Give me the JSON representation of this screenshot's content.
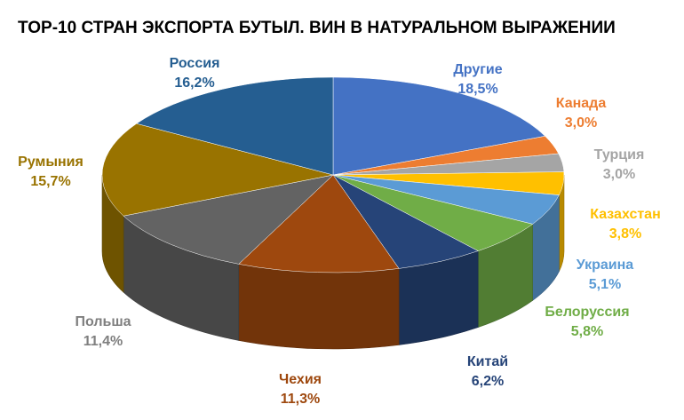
{
  "chart_data": {
    "type": "pie",
    "title": "TOP-10 СТРАН ЭКСПОРТА БУТЫЛ. ВИН В НАТУРАЛЬНОМ ВЫРАЖЕНИИ",
    "slices": [
      {
        "name": "Другие",
        "value": 18.5,
        "label": "18,5%",
        "color": "#4472C4",
        "label_color": "#4472C4"
      },
      {
        "name": "Канада",
        "value": 3.0,
        "label": "3,0%",
        "color": "#ED7D31",
        "label_color": "#ED7D31"
      },
      {
        "name": "Турция",
        "value": 3.0,
        "label": "3,0%",
        "color": "#A5A5A5",
        "label_color": "#A5A5A5"
      },
      {
        "name": "Казахстан",
        "value": 3.8,
        "label": "3,8%",
        "color": "#FFC000",
        "label_color": "#FFC000"
      },
      {
        "name": "Украина",
        "value": 5.1,
        "label": "5,1%",
        "color": "#5B9BD5",
        "label_color": "#5B9BD5"
      },
      {
        "name": "Белоруссия",
        "value": 5.8,
        "label": "5,8%",
        "color": "#70AD47",
        "label_color": "#70AD47"
      },
      {
        "name": "Китай",
        "value": 6.2,
        "label": "6,2%",
        "color": "#264478",
        "label_color": "#264478"
      },
      {
        "name": "Чехия",
        "value": 11.3,
        "label": "11,3%",
        "color": "#9E480E",
        "label_color": "#9E480E"
      },
      {
        "name": "Польша",
        "value": 11.4,
        "label": "11,4%",
        "color": "#636363",
        "label_color": "#7F7F7F"
      },
      {
        "name": "Румыния",
        "value": 15.7,
        "label": "15,7%",
        "color": "#997300",
        "label_color": "#997300"
      },
      {
        "name": "Россия",
        "value": 16.2,
        "label": "16,2%",
        "color": "#255E91",
        "label_color": "#255E91"
      }
    ]
  }
}
